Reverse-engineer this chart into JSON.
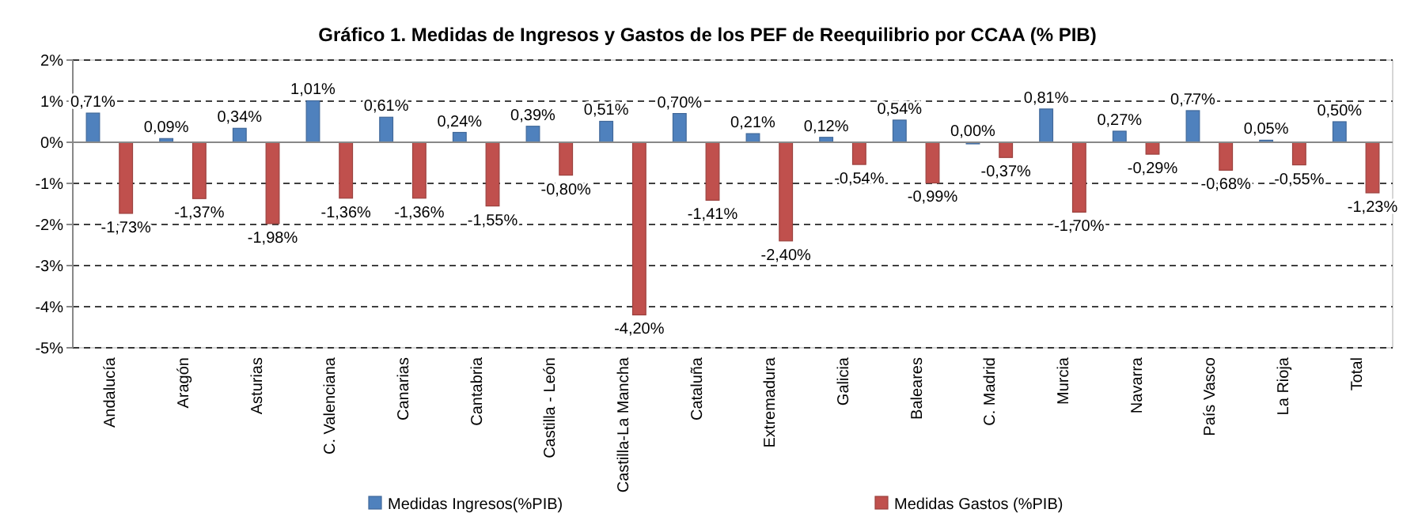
{
  "chart_data": {
    "type": "bar",
    "title": "Gráfico 1. Medidas de Ingresos y Gastos de los PEF de  Reequilibrio por CCAA  (% PIB)",
    "categories": [
      "Andalucía",
      "Aragón",
      "Asturias",
      "C. Valenciana",
      "Canarias",
      "Cantabria",
      "Castilla - León",
      "Castilla-La Mancha",
      "Cataluña",
      "Extremadura",
      "Galicia",
      "Baleares",
      "C. Madrid",
      "Murcia",
      "Navarra",
      "País Vasco",
      "La Rioja",
      "Total"
    ],
    "series": [
      {
        "name": "Medidas Ingresos(%PIB)",
        "color": "#4f81bd",
        "values": [
          0.71,
          0.09,
          0.34,
          1.01,
          0.61,
          0.24,
          0.39,
          0.51,
          0.7,
          0.21,
          0.12,
          0.54,
          0.0,
          0.81,
          0.27,
          0.77,
          0.05,
          0.5
        ],
        "value_labels": [
          "0,71%",
          "0,09%",
          "0,34%",
          "1,01%",
          "0,61%",
          "0,24%",
          "0,39%",
          "0,51%",
          "0,70%",
          "0,21%",
          "0,12%",
          "0,54%",
          "0,00%",
          "0,81%",
          "0,27%",
          "0,77%",
          "0,05%",
          "0,50%"
        ]
      },
      {
        "name": "Medidas Gastos (%PIB)",
        "color": "#c0504d",
        "values": [
          -1.73,
          -1.37,
          -1.98,
          -1.36,
          -1.36,
          -1.55,
          -0.8,
          -4.2,
          -1.41,
          -2.4,
          -0.54,
          -0.99,
          -0.37,
          -1.7,
          -0.29,
          -0.68,
          -0.55,
          -1.23
        ],
        "value_labels": [
          "-1,73%",
          "-1,37%",
          "-1,98%",
          "-1,36%",
          "-1,36%",
          "-1,55%",
          "-0,80%",
          "-4,20%",
          "-1,41%",
          "-2,40%",
          "-0,54%",
          "-0,99%",
          "-0,37%",
          "-1,70%",
          "-0,29%",
          "-0,68%",
          "-0,55%",
          "-1,23%"
        ]
      }
    ],
    "ylim": [
      -5,
      2
    ],
    "yticks": [
      {
        "value": 2,
        "label": "2%"
      },
      {
        "value": 1,
        "label": "1%"
      },
      {
        "value": 0,
        "label": "0%"
      },
      {
        "value": -1,
        "label": "-1%"
      },
      {
        "value": -2,
        "label": "-2%"
      },
      {
        "value": -3,
        "label": "-3%"
      },
      {
        "value": -4,
        "label": "-4%"
      },
      {
        "value": -5,
        "label": "-5%"
      }
    ],
    "grid": "y",
    "legend": "bottom"
  }
}
